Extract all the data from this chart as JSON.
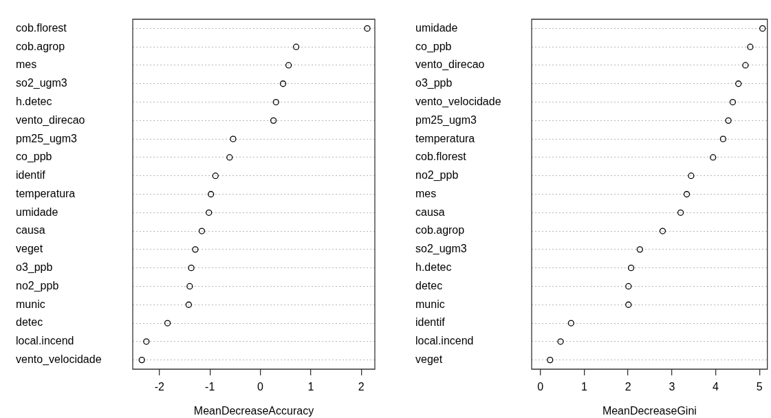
{
  "chart_data": [
    {
      "type": "scatter",
      "orientation": "horizontal",
      "xlabel": "MeanDecreaseAccuracy",
      "categories": [
        "cob.florest",
        "cob.agrop",
        "mes",
        "so2_ugm3",
        "h.detec",
        "vento_direcao",
        "pm25_ugm3",
        "co_ppb",
        "identif",
        "temperatura",
        "umidade",
        "causa",
        "veget",
        "o3_ppb",
        "no2_ppb",
        "munic",
        "detec",
        "local.incend",
        "vento_velocidade"
      ],
      "series": [
        {
          "color": "#000000",
          "values": [
            2.12,
            0.71,
            0.56,
            0.45,
            0.31,
            0.26,
            -0.54,
            -0.61,
            -0.89,
            -0.98,
            -1.02,
            -1.16,
            -1.29,
            -1.37,
            -1.4,
            -1.42,
            -1.84,
            -2.26,
            -2.35
          ]
        }
      ],
      "xlim": [
        -2.53,
        2.27
      ],
      "xticks": [
        -2,
        -1,
        0,
        1,
        2
      ],
      "grid": "y",
      "marker": "circle"
    },
    {
      "type": "scatter",
      "orientation": "horizontal",
      "xlabel": "MeanDecreaseGini",
      "categories": [
        "umidade",
        "co_ppb",
        "vento_direcao",
        "o3_ppb",
        "vento_velocidade",
        "pm25_ugm3",
        "temperatura",
        "cob.florest",
        "no2_ppb",
        "mes",
        "causa",
        "cob.agrop",
        "so2_ugm3",
        "h.detec",
        "detec",
        "munic",
        "identif",
        "local.incend",
        "veget"
      ],
      "series": [
        {
          "color": "#000000",
          "values": [
            5.07,
            4.79,
            4.68,
            4.52,
            4.39,
            4.29,
            4.17,
            3.94,
            3.44,
            3.34,
            3.2,
            2.79,
            2.27,
            2.07,
            2.01,
            2.01,
            0.7,
            0.46,
            0.22
          ]
        }
      ],
      "xlim": [
        -0.2,
        5.18
      ],
      "xticks": [
        0,
        1,
        2,
        3,
        4,
        5
      ],
      "grid": "y",
      "marker": "circle"
    }
  ]
}
